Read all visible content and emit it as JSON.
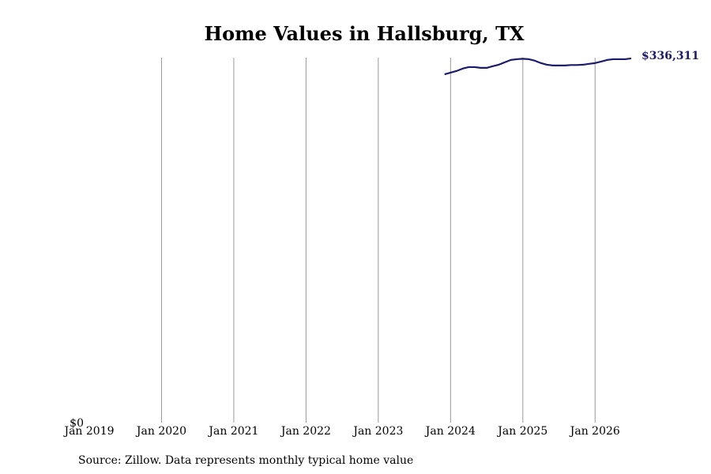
{
  "chart_data": {
    "type": "line",
    "title": "Home Values in Hallsburg, TX",
    "source": "Source: Zillow. Data represents monthly typical home value",
    "x": [
      "2023-12",
      "2024-01",
      "2024-02",
      "2024-03",
      "2024-04",
      "2024-05",
      "2024-06",
      "2024-07",
      "2024-08",
      "2024-09",
      "2024-10",
      "2024-11",
      "2024-12",
      "2025-01",
      "2025-02",
      "2025-03",
      "2025-04",
      "2025-05",
      "2025-06",
      "2025-07",
      "2025-08",
      "2025-09",
      "2025-10",
      "2025-11",
      "2025-12",
      "2026-01",
      "2026-02",
      "2026-03",
      "2026-04",
      "2026-05",
      "2026-06",
      "2026-07"
    ],
    "series": [
      {
        "name": "Home value",
        "color": "#1b1a6b",
        "values": [
          321600,
          323200,
          324700,
          326900,
          328300,
          328300,
          327600,
          327600,
          329100,
          330500,
          332700,
          334900,
          335600,
          336000,
          335600,
          334200,
          332000,
          330500,
          329800,
          329800,
          329800,
          330200,
          330200,
          330500,
          331300,
          332000,
          333400,
          334900,
          335600,
          335600,
          335600,
          336311
        ],
        "last_value_label": "$336,311"
      }
    ],
    "xlim": [
      "2019-01",
      "2026-07"
    ],
    "xticks": [
      {
        "value": "2019-01",
        "label": "Jan 2019"
      },
      {
        "value": "2020-01",
        "label": "Jan 2020"
      },
      {
        "value": "2021-01",
        "label": "Jan 2021"
      },
      {
        "value": "2022-01",
        "label": "Jan 2022"
      },
      {
        "value": "2023-01",
        "label": "Jan 2023"
      },
      {
        "value": "2024-01",
        "label": "Jan 2024"
      },
      {
        "value": "2025-01",
        "label": "Jan 2025"
      },
      {
        "value": "2026-01",
        "label": "Jan 2026"
      }
    ],
    "ylim": [
      0,
      337000
    ],
    "yticks": [
      {
        "value": 0,
        "label": "$0"
      }
    ],
    "grid": true
  }
}
